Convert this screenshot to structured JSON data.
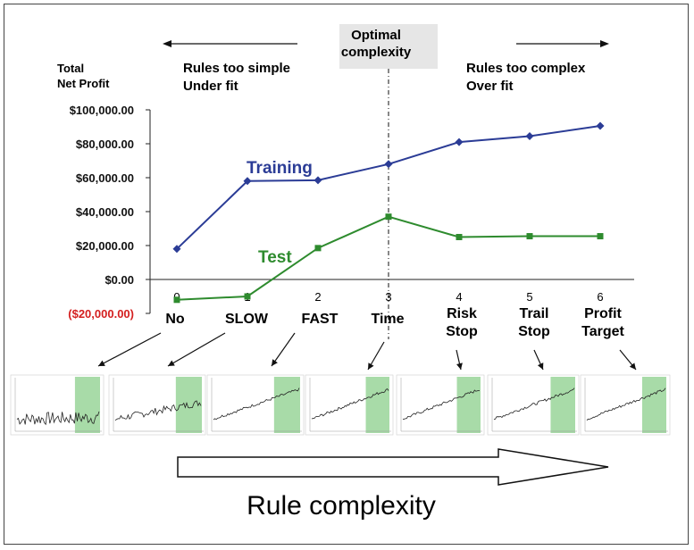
{
  "chart_data": {
    "type": "line",
    "ylabel_lines": [
      "Total",
      "Net Profit"
    ],
    "x": [
      0,
      1,
      2,
      3,
      4,
      5,
      6
    ],
    "x_tick_labels": [
      "0",
      "1",
      "2",
      "3",
      "4",
      "5",
      "6"
    ],
    "category_labels": [
      [
        "No"
      ],
      [
        "SLOW"
      ],
      [
        "FAST"
      ],
      [
        "Time"
      ],
      [
        "Risk",
        "Stop"
      ],
      [
        "Trail",
        "Stop"
      ],
      [
        "Profit",
        "Target"
      ]
    ],
    "y_ticks": [
      -20000,
      0,
      20000,
      40000,
      60000,
      80000,
      100000
    ],
    "y_tick_labels": [
      "($20,000.00)",
      "$0.00",
      "$20,000.00",
      "$40,000.00",
      "$60,000.00",
      "$80,000.00",
      "$100,000.00"
    ],
    "ylim": [
      -20000,
      100000
    ],
    "series": [
      {
        "name": "Training",
        "color": "#2b3c96",
        "marker": "diamond",
        "values": [
          18000,
          58000,
          58500,
          68000,
          81000,
          84500,
          90500
        ]
      },
      {
        "name": "Test",
        "color": "#2e8b2e",
        "marker": "square",
        "values": [
          -12000,
          -10000,
          18500,
          37000,
          25000,
          25500,
          25500
        ]
      }
    ],
    "optimal_line_x": 3,
    "negative_tick_color": "#d42020"
  },
  "annotations": {
    "optimal_lines": [
      "Optimal",
      "complexity"
    ],
    "left_lines": [
      "Rules too simple",
      "Under fit"
    ],
    "right_lines": [
      "Rules too complex",
      "Over fit"
    ]
  },
  "bottom_arrow_label": "Rule complexity",
  "thumbnail_highlight_color": "#a8dba8"
}
